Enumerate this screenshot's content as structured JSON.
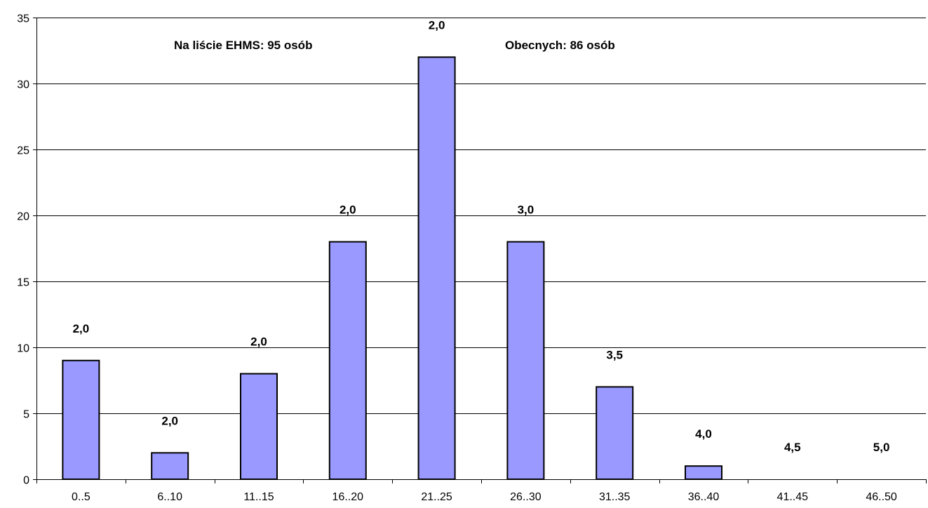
{
  "chart_data": {
    "type": "bar",
    "categories": [
      "0..5",
      "6..10",
      "11..15",
      "16..20",
      "21..25",
      "26..30",
      "31..35",
      "36..40",
      "41..45",
      "46..50"
    ],
    "values": [
      9,
      2,
      8,
      18,
      32,
      18,
      7,
      1,
      0,
      0
    ],
    "data_labels": [
      "2,0",
      "2,0",
      "2,0",
      "2,0",
      "2,0",
      "3,0",
      "3,5",
      "4,0",
      "4,5",
      "5,0"
    ],
    "yticks": [
      0,
      5,
      10,
      15,
      20,
      25,
      30,
      35
    ],
    "ylim": [
      0,
      35
    ],
    "grid": true,
    "bar_color": "#9999FF",
    "bar_edge_color": "#000000",
    "annotations": [
      "Na liście EHMS: 95 osób",
      "Obecnych: 86 osób"
    ]
  }
}
